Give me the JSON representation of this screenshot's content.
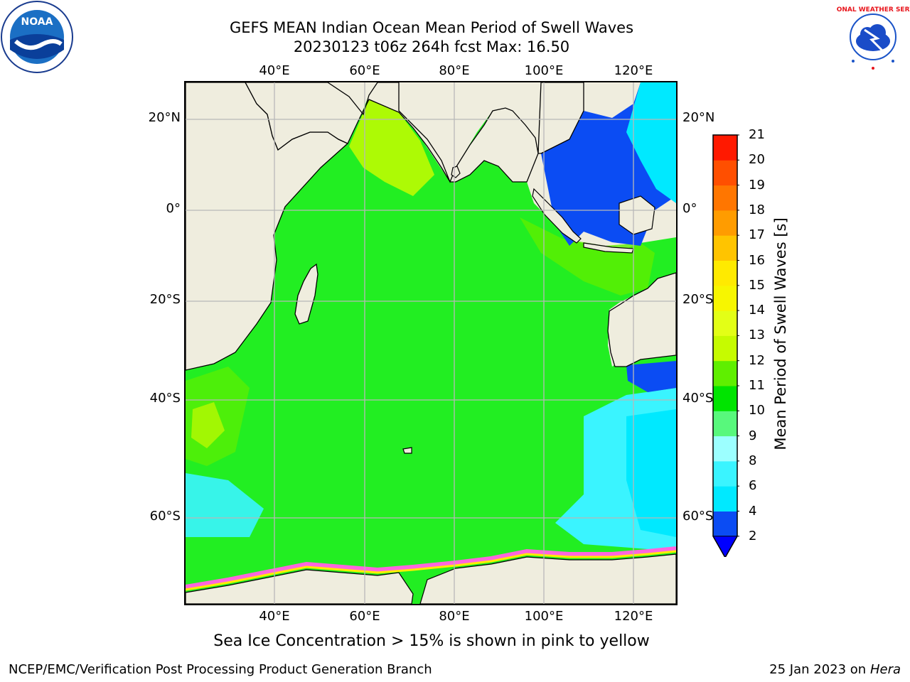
{
  "header": {
    "title_line1": "GEFS MEAN Indian Ocean Mean Period of Swell Waves",
    "title_line2": "20230123 t06z 264h fcst   Max: 16.50"
  },
  "logos": {
    "noaa_text": "NOAA",
    "nws_text": "NATIONAL WEATHER SERVICE"
  },
  "map": {
    "lon_labels": [
      "40°E",
      "60°E",
      "80°E",
      "100°E",
      "120°E"
    ],
    "lat_labels": [
      "20°N",
      "0°",
      "20°S",
      "40°S",
      "60°S"
    ],
    "colors": {
      "land": "#efedde",
      "ocean_dominant": "#22ee22"
    }
  },
  "colorbar": {
    "title": "Mean Period of Swell Waves [s]",
    "ticks": [
      "2",
      "4",
      "6",
      "8",
      "9",
      "10",
      "11",
      "12",
      "13",
      "14",
      "15",
      "16",
      "17",
      "18",
      "19",
      "20",
      "21"
    ],
    "colors": [
      "#0b4cf3",
      "#00e9ff",
      "#3af4ff",
      "#9cffff",
      "#58f87c",
      "#00e400",
      "#5fef00",
      "#c6fb00",
      "#e3ff16",
      "#f7f600",
      "#ffea00",
      "#ffc400",
      "#ff9c00",
      "#ff7600",
      "#ff4f00",
      "#ff1900"
    ],
    "extend_color": "#0000ff"
  },
  "footer": {
    "note": "Sea Ice Concentration > 15% is shown in pink to yellow",
    "left": "NCEP/EMC/Verification Post Processing Product Generation Branch",
    "right_prefix": "25 Jan 2023 on ",
    "right_machine": "Hera"
  }
}
